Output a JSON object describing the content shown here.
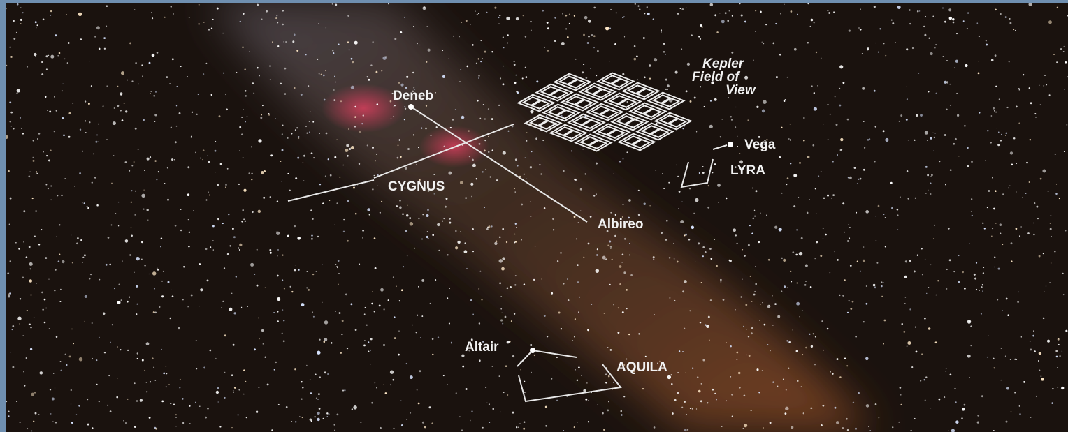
{
  "labels": {
    "kepler": [
      "Kepler",
      "Field of",
      "View"
    ],
    "deneb": "Deneb",
    "cygnus": "CYGNUS",
    "vega": "Vega",
    "lyra": "LYRA",
    "albireo": "Albireo",
    "altair": "Altair",
    "aquila": "AQUILA"
  }
}
